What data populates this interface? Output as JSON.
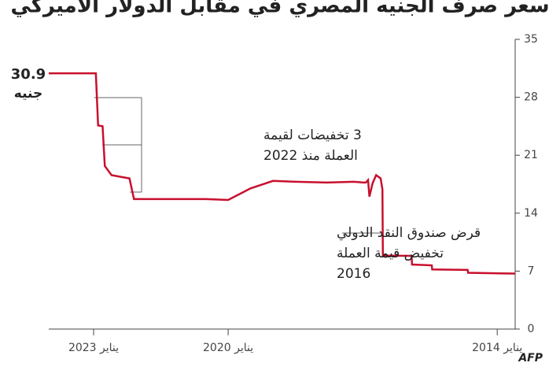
{
  "chart_data": {
    "type": "line",
    "title": "سعر صرف الجنيه المصري في مقابل الدولار الأميركي",
    "current_value": 30.9,
    "unit_label": "جنيه",
    "x": [
      2013.6,
      2014.65,
      2014.66,
      2015.45,
      2015.46,
      2015.9,
      2015.91,
      2016.55,
      2016.56,
      2016.6,
      2016.7,
      2016.78,
      2016.85,
      2016.88,
      2016.93,
      2016.98,
      2017.2,
      2017.8,
      2018.5,
      2019.0,
      2019.5,
      2020.0,
      2020.5,
      2021.0,
      2021.5,
      2022.1,
      2022.2,
      2022.3,
      2022.6,
      2022.75,
      2022.8,
      2022.9,
      2022.95,
      2023.0,
      2024.0
    ],
    "series": [
      {
        "name": "جنيه",
        "color": "#c8102e",
        "values": [
          6.7,
          6.8,
          7.15,
          7.2,
          7.7,
          7.8,
          8.85,
          8.88,
          16.9,
          18.2,
          18.6,
          17.6,
          16.0,
          18.0,
          17.7,
          17.7,
          17.8,
          17.7,
          17.8,
          17.9,
          17.0,
          15.6,
          15.7,
          15.7,
          15.7,
          15.7,
          18.2,
          18.3,
          18.6,
          19.7,
          24.5,
          24.6,
          30.9,
          30.9,
          30.9
        ]
      }
    ],
    "xlim": [
      2024.0,
      2013.6
    ],
    "xticks": [
      {
        "value": 2023,
        "label": "يناير 2023"
      },
      {
        "value": 2020,
        "label": "يناير 2020"
      },
      {
        "value": 2014,
        "label": "يناير 2014"
      }
    ],
    "ylim": [
      0,
      35
    ],
    "yticks": [
      0,
      7,
      14,
      21,
      28,
      35
    ],
    "annotations": [
      {
        "lines": [
          "3 تخفيضات لقيمة",
          "العملة منذ 2022"
        ]
      },
      {
        "lines": [
          "قرض صندوق النقد الدولي",
          "تخفيض قيمة العملة",
          "2016"
        ]
      }
    ],
    "source": "AFP"
  }
}
